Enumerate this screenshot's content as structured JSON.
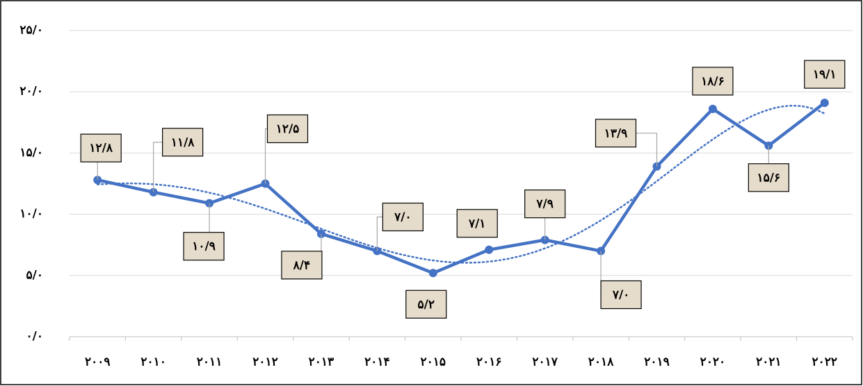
{
  "chart_data": {
    "type": "line",
    "categories": [
      "۲۰۰۹",
      "۲۰۱۰",
      "۲۰۱۱",
      "۲۰۱۲",
      "۲۰۱۳",
      "۲۰۱۴",
      "۲۰۱۵",
      "۲۰۱۶",
      "۲۰۱۷",
      "۲۰۱۸",
      "۲۰۱۹",
      "۲۰۲۰",
      "۲۰۲۱",
      "۲۰۲۲"
    ],
    "series": [
      {
        "color": "#4472c4",
        "values": [
          12.8,
          11.8,
          10.9,
          12.5,
          8.4,
          7.0,
          5.2,
          7.1,
          7.9,
          7.0,
          13.9,
          18.6,
          15.6,
          19.1
        ],
        "value_labels": [
          "۱۲/۸",
          "۱۱/۸",
          "۱۰/۹",
          "۱۲/۵",
          "۸/۴",
          "۷/۰",
          "۵/۲",
          "۷/۱",
          "۷/۹",
          "۷/۰",
          "۱۳/۹",
          "۱۸/۶",
          "۱۵/۶",
          "۱۹/۱"
        ]
      }
    ],
    "trendline": {
      "kind": "polynomial",
      "order": 5
    },
    "ylim": [
      0,
      25
    ],
    "yticks": [
      {
        "value": 0,
        "label": "۰/۰"
      },
      {
        "value": 5,
        "label": "۵/۰"
      },
      {
        "value": 10,
        "label": "۱۰/۰"
      },
      {
        "value": 15,
        "label": "۱۵/۰"
      },
      {
        "value": 20,
        "label": "۲۰/۰"
      },
      {
        "value": 25,
        "label": "۲۵/۰"
      }
    ],
    "grid": true
  }
}
